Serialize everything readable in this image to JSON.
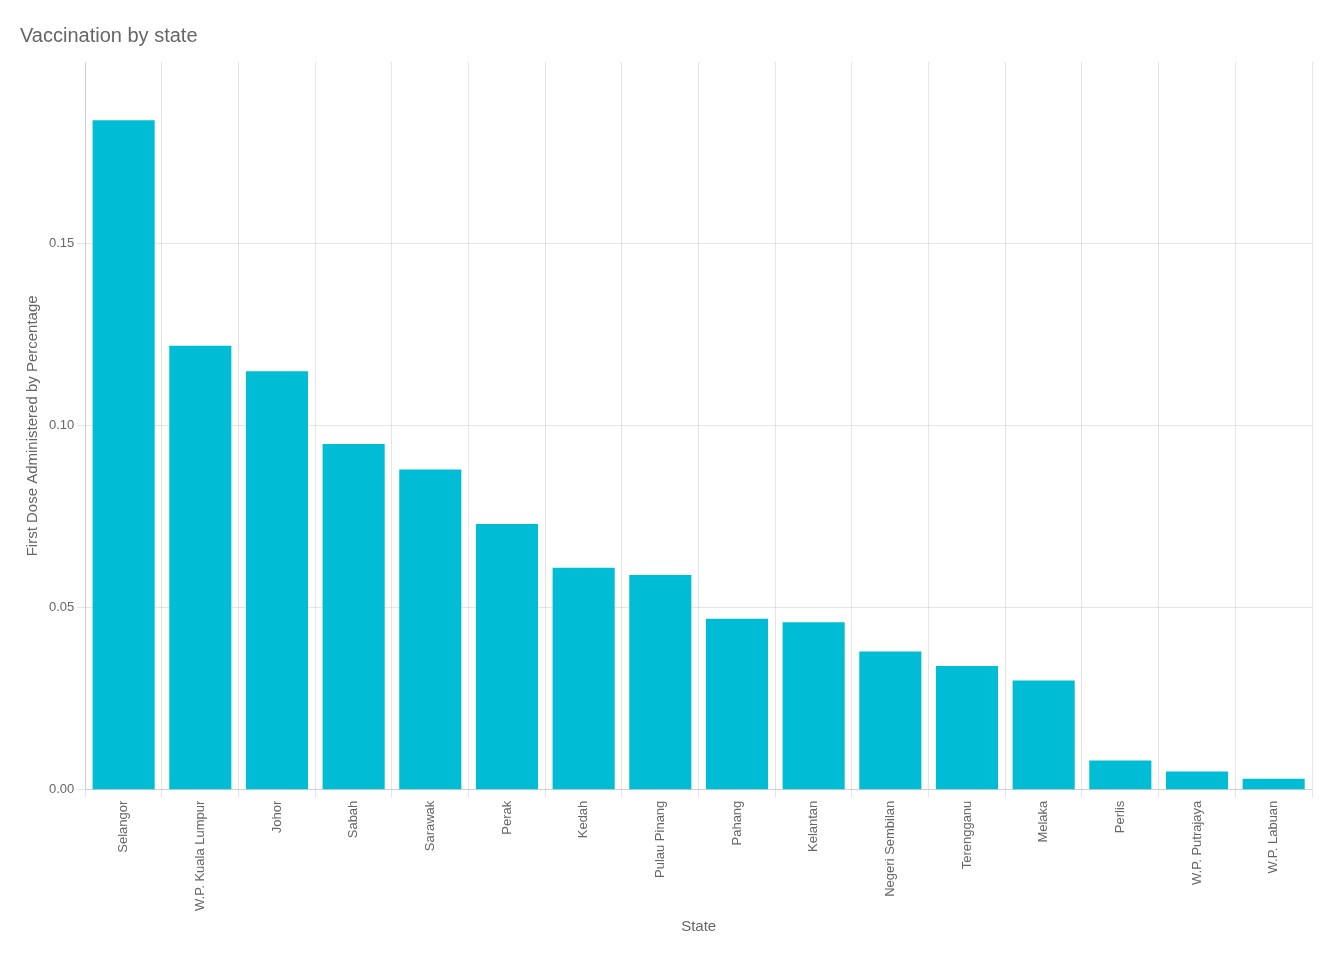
{
  "chart_data": {
    "type": "bar",
    "title": "Vaccination by state",
    "xlabel": "State",
    "ylabel": "First Dose Administered by Percentage",
    "categories": [
      "Selangor",
      "W.P. Kuala Lumpur",
      "Johor",
      "Sabah",
      "Sarawak",
      "Perak",
      "Kedah",
      "Pulau Pinang",
      "Pahang",
      "Kelantan",
      "Negeri Sembilan",
      "Terengganu",
      "Melaka",
      "Perlis",
      "W.P. Putrajaya",
      "W.P. Labuan"
    ],
    "values": [
      0.184,
      0.122,
      0.115,
      0.095,
      0.088,
      0.073,
      0.061,
      0.059,
      0.047,
      0.046,
      0.038,
      0.034,
      0.03,
      0.008,
      0.005,
      0.003
    ],
    "color": "#00BCD4",
    "ylim": [
      0,
      0.2
    ],
    "yticks": [
      {
        "value": 0.0,
        "label": "0.00"
      },
      {
        "value": 0.05,
        "label": "0.05"
      },
      {
        "value": 0.1,
        "label": "0.10"
      },
      {
        "value": 0.15,
        "label": "0.15"
      }
    ],
    "grid": true
  }
}
